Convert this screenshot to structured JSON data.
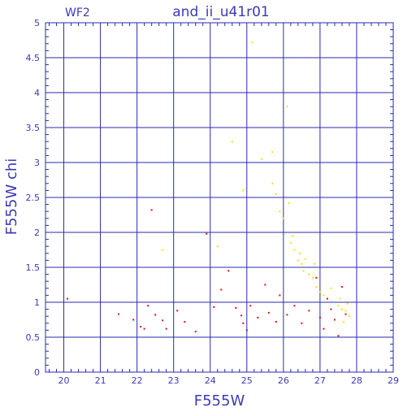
{
  "chart_data": {
    "type": "scatter",
    "title": "and_ii_u41r01",
    "subtitle": "WF2",
    "xlabel": "F555W",
    "ylabel": "F555W chi",
    "xlim": [
      19.5,
      29
    ],
    "ylim": [
      0,
      5
    ],
    "x_ticks": [
      "20",
      "21",
      "22",
      "23",
      "24",
      "25",
      "26",
      "27",
      "28",
      "29"
    ],
    "y_ticks": [
      "0",
      "0.5",
      "1",
      "1.5",
      "2",
      "2.5",
      "3",
      "3.5",
      "4",
      "4.5",
      "5"
    ],
    "grid": true,
    "colors": {
      "axis": "#2a2ab0",
      "grid": "#2a2ab0",
      "text": "#3b3bb8",
      "red": "#dd1111",
      "yellow": "#f2e400"
    },
    "series": [
      {
        "color": "red",
        "points": [
          [
            20.1,
            1.05
          ],
          [
            21.5,
            0.83
          ],
          [
            21.9,
            0.75
          ],
          [
            22.1,
            0.65
          ],
          [
            22.2,
            0.62
          ],
          [
            22.4,
            2.32
          ],
          [
            22.3,
            0.95
          ],
          [
            22.5,
            0.82
          ],
          [
            22.7,
            0.74
          ],
          [
            22.8,
            0.62
          ],
          [
            23.1,
            0.88
          ],
          [
            23.3,
            0.72
          ],
          [
            23.6,
            0.58
          ],
          [
            23.9,
            1.98
          ],
          [
            24.1,
            0.93
          ],
          [
            24.3,
            1.18
          ],
          [
            24.5,
            1.45
          ],
          [
            24.7,
            0.92
          ],
          [
            24.85,
            0.81
          ],
          [
            24.9,
            0.7
          ],
          [
            25.0,
            0.6
          ],
          [
            25.1,
            0.95
          ],
          [
            25.3,
            0.78
          ],
          [
            25.5,
            1.25
          ],
          [
            25.6,
            0.85
          ],
          [
            25.8,
            0.72
          ],
          [
            25.9,
            1.1
          ],
          [
            26.1,
            0.82
          ],
          [
            26.3,
            0.95
          ],
          [
            26.5,
            0.7
          ],
          [
            26.7,
            0.88
          ],
          [
            26.9,
            1.35
          ],
          [
            27.0,
            0.78
          ],
          [
            27.1,
            0.62
          ],
          [
            27.2,
            1.05
          ],
          [
            27.3,
            0.9
          ],
          [
            27.4,
            0.75
          ],
          [
            27.5,
            0.52
          ],
          [
            27.6,
            1.22
          ],
          [
            27.7,
            0.83
          ]
        ]
      },
      {
        "color": "yellow",
        "points": [
          [
            22.7,
            1.75
          ],
          [
            24.2,
            1.8
          ],
          [
            24.6,
            3.3
          ],
          [
            24.9,
            2.6
          ],
          [
            25.15,
            4.72
          ],
          [
            25.4,
            3.05
          ],
          [
            25.7,
            3.15
          ],
          [
            25.7,
            2.7
          ],
          [
            25.8,
            2.55
          ],
          [
            25.9,
            2.3
          ],
          [
            26.0,
            2.2
          ],
          [
            26.1,
            3.8
          ],
          [
            26.15,
            2.42
          ],
          [
            26.2,
            1.85
          ],
          [
            26.25,
            1.95
          ],
          [
            26.3,
            1.75
          ],
          [
            26.4,
            1.6
          ],
          [
            26.45,
            1.7
          ],
          [
            26.5,
            1.55
          ],
          [
            26.55,
            1.45
          ],
          [
            26.6,
            1.62
          ],
          [
            26.7,
            1.4
          ],
          [
            26.8,
            1.35
          ],
          [
            26.85,
            1.55
          ],
          [
            26.9,
            1.22
          ],
          [
            27.0,
            1.15
          ],
          [
            27.1,
            1.1
          ],
          [
            27.3,
            1.2
          ],
          [
            27.5,
            0.95
          ],
          [
            27.6,
            0.9
          ],
          [
            27.7,
            0.88
          ],
          [
            27.8,
            0.8
          ],
          [
            27.65,
            0.72
          ],
          [
            27.75,
            0.98
          ],
          [
            27.55,
            1.05
          ]
        ]
      }
    ]
  }
}
